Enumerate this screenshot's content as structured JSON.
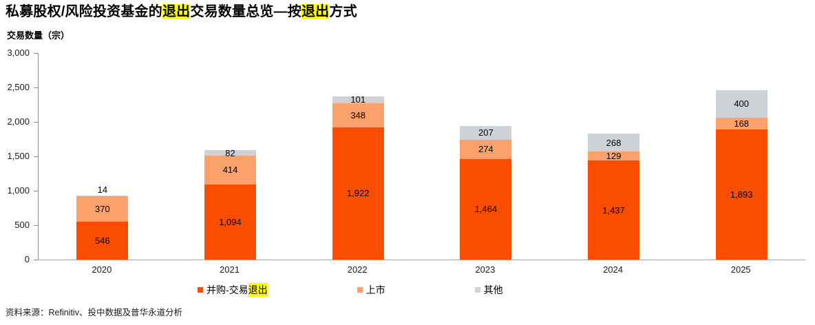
{
  "title": {
    "part1": "私募股权/风险投资基金的",
    "highlight1": "退出",
    "part2": "交易数量总览—按",
    "highlight2": "退出",
    "part3": "方式"
  },
  "source": "资料来源：Refinitiv、投中数据及普华永道分析",
  "colors": {
    "merger_orange": "#FA4D00",
    "ipo_light_orange": "#FBA26C",
    "other_gray": "#CDD2D7",
    "highlight_yellow": "#FFFF00",
    "axis_gray": "#8c8c8c"
  },
  "legend": {
    "items": [
      {
        "prefix": "并购-交易",
        "highlight": "退出"
      },
      {
        "label": "上市"
      },
      {
        "label": "其他"
      }
    ]
  },
  "chart_data": {
    "type": "bar",
    "stacked": true,
    "title": "私募股权/风险投资基金的退出交易数量总览—按退出方式",
    "ylabel": "交易数量（宗）",
    "xlabel": "",
    "categories": [
      "2020",
      "2021",
      "2022",
      "2023",
      "2024",
      "2025"
    ],
    "series": [
      {
        "name": "并购-交易退出",
        "color": "#FA4D00",
        "values": [
          546,
          1094,
          1922,
          1464,
          1437,
          1893
        ],
        "labels": [
          "546",
          "1,094",
          "1,922",
          "1,464",
          "1,437",
          "1,893"
        ]
      },
      {
        "name": "上市",
        "color": "#FBA26C",
        "values": [
          370,
          414,
          348,
          274,
          129,
          168
        ],
        "labels": [
          "370",
          "414",
          "348",
          "274",
          "129",
          "168"
        ]
      },
      {
        "name": "其他",
        "color": "#CDD2D7",
        "values": [
          14,
          82,
          101,
          207,
          268,
          400
        ],
        "labels": [
          "14",
          "82",
          "101",
          "207",
          "268",
          "400"
        ]
      }
    ],
    "totals": [
      930,
      1590,
      2371,
      1945,
      1834,
      2461
    ],
    "ylim": [
      0,
      3000
    ],
    "y_ticks": [
      "3,000",
      "2,500",
      "2,000",
      "1,500",
      "1,000",
      "500",
      "0"
    ],
    "grid": false,
    "legend_position": "bottom"
  }
}
